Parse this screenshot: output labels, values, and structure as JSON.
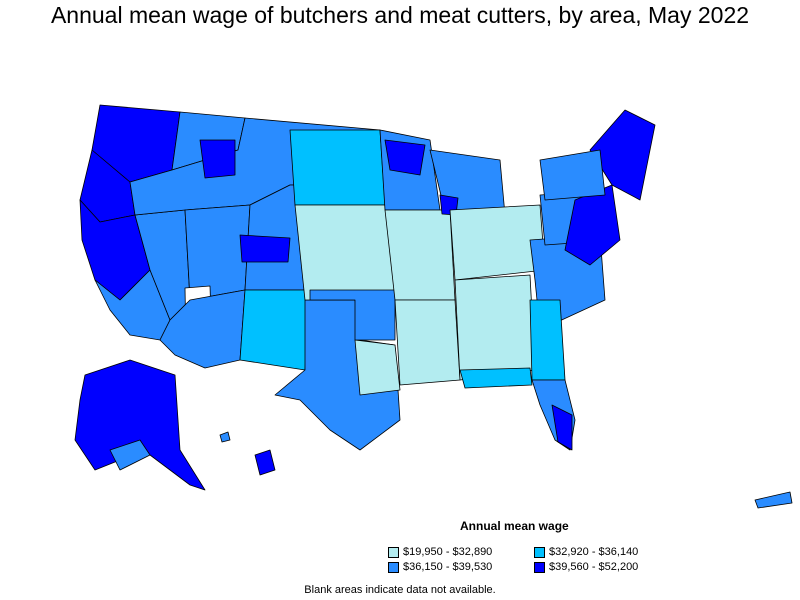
{
  "title": "Annual mean wage of butchers and meat cutters, by area, May 2022",
  "legend": {
    "title": "Annual mean wage",
    "items": [
      {
        "label": "$19,950 - $32,890",
        "color": "#b3ecf0"
      },
      {
        "label": "$32,920 - $36,140",
        "color": "#00c0ff"
      },
      {
        "label": "$36,150 - $39,530",
        "color": "#2a8cff"
      },
      {
        "label": "$39,560 - $52,200",
        "color": "#0000ff"
      }
    ]
  },
  "footnote": "Blank areas indicate data not available.",
  "colors": {
    "no_data": "#ffffff",
    "border": "#000000"
  }
}
